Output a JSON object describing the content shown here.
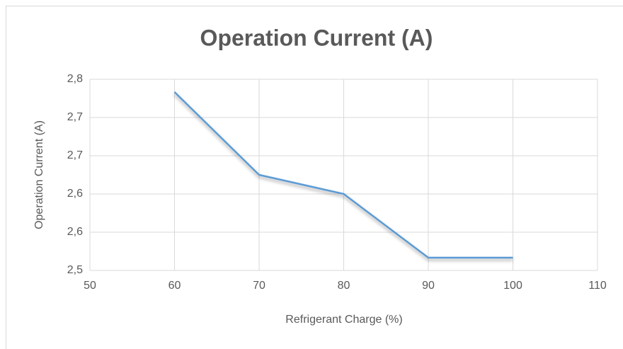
{
  "chart_data": {
    "type": "line",
    "title": "Operation Current (A)",
    "x_label": "Refrigerant Charge (%)",
    "y_label": "Operation Current (A)",
    "x": [
      60,
      70,
      80,
      90,
      100
    ],
    "series": [
      {
        "name": "Operation Current (A)",
        "color": "#5b9bd5",
        "values": [
          2.78,
          2.65,
          2.62,
          2.52,
          2.52
        ]
      }
    ],
    "xlim": [
      50,
      110
    ],
    "xticks": [
      50,
      60,
      70,
      80,
      90,
      100,
      110
    ],
    "ylim": [
      2.5,
      2.8
    ],
    "yticks": [
      {
        "value": 2.5,
        "label": "2,5"
      },
      {
        "value": 2.56,
        "label": "2,6"
      },
      {
        "value": 2.62,
        "label": "2,6"
      },
      {
        "value": 2.68,
        "label": "2,7"
      },
      {
        "value": 2.74,
        "label": "2,7"
      },
      {
        "value": 2.8,
        "label": "2,8"
      }
    ],
    "grid": true
  }
}
